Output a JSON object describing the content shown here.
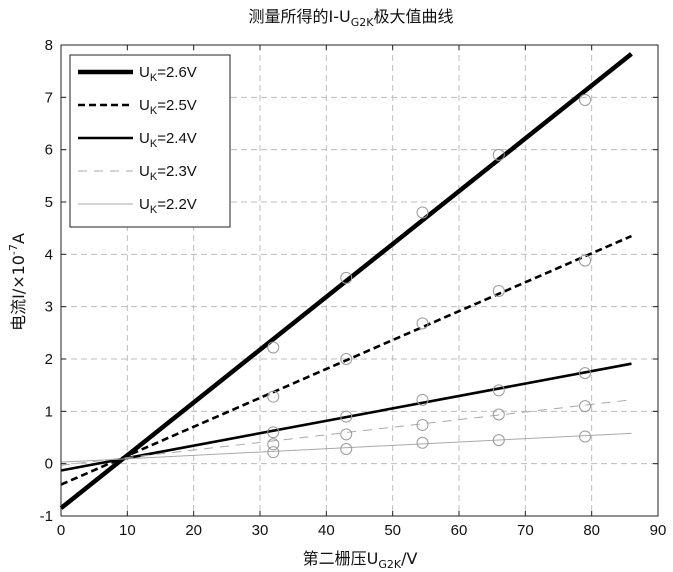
{
  "chart_data": {
    "type": "line",
    "title_main": "测量所得的I-U",
    "title_sub": "G2K",
    "title_tail": "极大值曲线",
    "xlabel_main": "第二栅压U",
    "xlabel_sub": "G2K",
    "xlabel_tail": "/V",
    "ylabel_main": "电流I/×10",
    "ylabel_sup": "-7",
    "ylabel_tail": "A",
    "xlim": [
      0,
      90
    ],
    "ylim": [
      -1,
      8
    ],
    "xticks": [
      "0",
      "10",
      "20",
      "30",
      "40",
      "50",
      "60",
      "70",
      "80",
      "90"
    ],
    "yticks": [
      "-1",
      "0",
      "1",
      "2",
      "3",
      "4",
      "5",
      "6",
      "7",
      "8"
    ],
    "grid": true,
    "legend_position": "top-left",
    "series": [
      {
        "label_main": "U",
        "label_sub": "K",
        "label_tail": "=2.6V",
        "style": "thick-solid",
        "line": {
          "x": [
            0,
            86
          ],
          "y": [
            -0.85,
            7.83
          ]
        },
        "points": {
          "x": [
            32,
            43,
            54.5,
            66,
            79
          ],
          "y": [
            2.22,
            3.55,
            4.8,
            5.9,
            6.95
          ]
        }
      },
      {
        "label_main": "U",
        "label_sub": "K",
        "label_tail": "=2.5V",
        "style": "dashed",
        "line": {
          "x": [
            0,
            86
          ],
          "y": [
            -0.4,
            4.35
          ]
        },
        "points": {
          "x": [
            32,
            43,
            54.5,
            66,
            79
          ],
          "y": [
            1.28,
            2.0,
            2.68,
            3.3,
            3.88
          ]
        }
      },
      {
        "label_main": "U",
        "label_sub": "K",
        "label_tail": "=2.4V",
        "style": "solid",
        "line": {
          "x": [
            0,
            86
          ],
          "y": [
            -0.13,
            1.91
          ]
        },
        "points": {
          "x": [
            32,
            43,
            54.5,
            66,
            79
          ],
          "y": [
            0.6,
            0.9,
            1.22,
            1.4,
            1.73
          ]
        }
      },
      {
        "label_main": "U",
        "label_sub": "K",
        "label_tail": "=2.3V",
        "style": "thin-dashed",
        "line": {
          "x": [
            0,
            86
          ],
          "y": [
            -0.03,
            1.22
          ]
        },
        "points": {
          "x": [
            32,
            43,
            54.5,
            66,
            79
          ],
          "y": [
            0.37,
            0.56,
            0.74,
            0.94,
            1.1
          ]
        }
      },
      {
        "label_main": "U",
        "label_sub": "K",
        "label_tail": "=2.2V",
        "style": "thin-solid",
        "line": {
          "x": [
            0,
            86
          ],
          "y": [
            0.03,
            0.58
          ]
        },
        "points": {
          "x": [
            32,
            43,
            54.5,
            66,
            79
          ],
          "y": [
            0.22,
            0.28,
            0.4,
            0.45,
            0.52
          ]
        }
      }
    ]
  }
}
